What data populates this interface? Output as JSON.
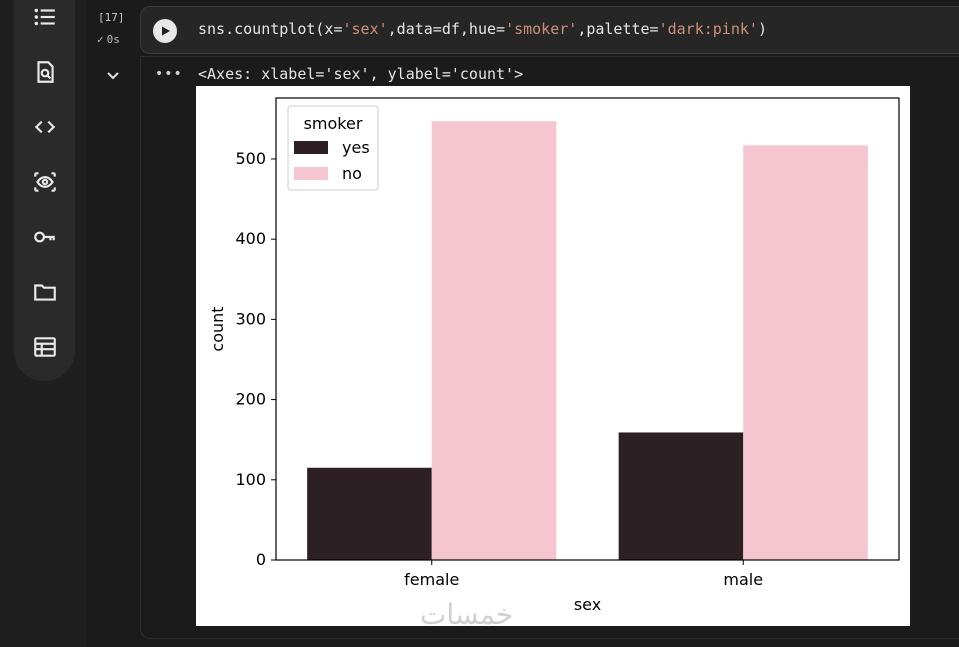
{
  "sidebar": {
    "icons": [
      "table-of-contents-icon",
      "find-icon",
      "code-snippets-icon",
      "variables-icon",
      "secrets-key-icon",
      "files-folder-icon",
      "data-table-icon"
    ]
  },
  "cell": {
    "execution_count": "[17]",
    "execution_time": "0s",
    "code": {
      "prefix": "sns.countplot(x=",
      "x_str": "'sex'",
      "mid1": ",data=df,hue=",
      "hue_str": "'smoker'",
      "mid2": ",palette=",
      "pal_str": "'dark:pink'",
      "suffix": ")"
    },
    "output_text": "<Axes: xlabel='sex', ylabel='count'>",
    "more_label": "•••"
  },
  "chart_data": {
    "type": "bar",
    "categories": [
      "female",
      "male"
    ],
    "series": [
      {
        "name": "yes",
        "values": [
          115,
          159
        ],
        "color": "#2d2024"
      },
      {
        "name": "no",
        "values": [
          547,
          517
        ],
        "color": "#f5c6cf"
      }
    ],
    "xlabel": "sex",
    "ylabel": "count",
    "ylim": [
      0,
      576
    ],
    "yticks": [
      0,
      100,
      200,
      300,
      400,
      500
    ],
    "legend": {
      "title": "smoker",
      "position": "top-left"
    },
    "grid": false
  },
  "watermark": "خمسات"
}
